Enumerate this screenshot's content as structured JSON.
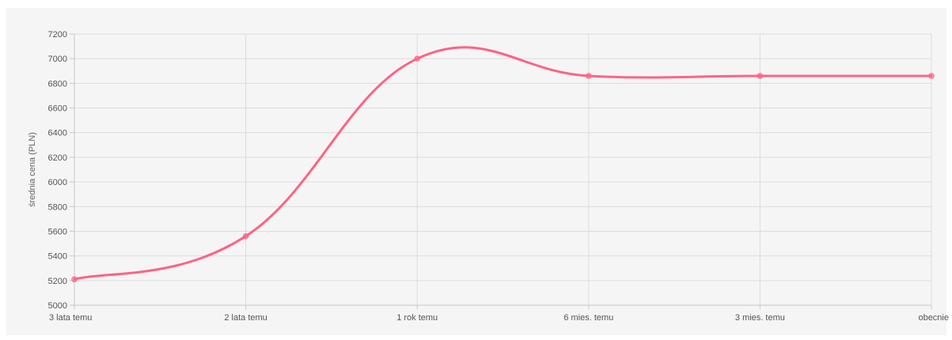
{
  "chart_data": {
    "type": "line",
    "categories": [
      "3 lata temu",
      "2 lata temu",
      "1 rok temu",
      "6 mies. temu",
      "3 mies. temu",
      "obecnie"
    ],
    "series": [
      {
        "values": [
          5210,
          5560,
          7000,
          6860,
          6860,
          6860
        ],
        "color": "#ff6384"
      }
    ],
    "ylabel": "średnia cena (PLN)",
    "xlabel": "",
    "ylim": [
      5000,
      7200
    ],
    "yticks": [
      5000,
      5200,
      5400,
      5600,
      5800,
      6000,
      6200,
      6400,
      6600,
      6800,
      7000,
      7200
    ],
    "grid": true,
    "curve": "smooth",
    "background": "#f5f5f5",
    "grid_color": "#dcdcdc"
  }
}
